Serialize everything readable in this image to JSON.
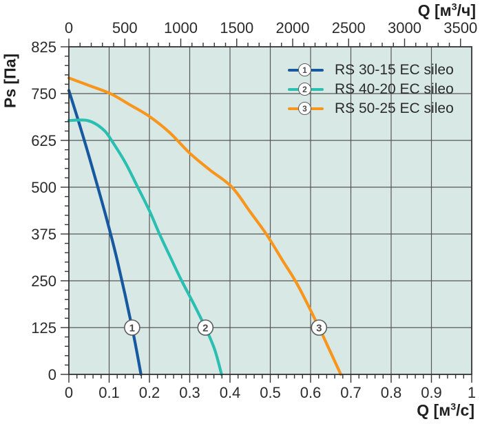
{
  "chart_data": {
    "type": "line",
    "title": "",
    "x_axis_bottom": {
      "unit_prefix": "Q [м",
      "unit_sup": "3",
      "unit_suffix": "/с]",
      "min": 0,
      "max": 1,
      "major_ticks": [
        0,
        0.1,
        0.2,
        0.3,
        0.4,
        0.5,
        0.6,
        0.7,
        0.8,
        0.9,
        1
      ],
      "tick_labels": [
        "0",
        "0.1",
        "0.2",
        "0.3",
        "0.4",
        "0.5",
        "0.6",
        "0.7",
        "0.8",
        "0.9",
        "1"
      ],
      "minor_step": 0.02
    },
    "x_axis_top": {
      "unit_prefix": "Q [м",
      "unit_sup": "3",
      "unit_suffix": "/ч]",
      "min": 0,
      "max": 3600,
      "major_ticks": [
        0,
        500,
        1000,
        1500,
        2000,
        2500,
        3000,
        3500
      ],
      "tick_labels": [
        "0",
        "500",
        "1000",
        "1500",
        "2000",
        "2500",
        "3000",
        "3500"
      ],
      "minor_step": 100
    },
    "y_axis": {
      "label": "Ps [Па]",
      "tick_values": [
        825,
        750,
        625,
        500,
        375,
        250,
        125,
        0
      ],
      "tick_labels": [
        "825",
        "750",
        "625",
        "500",
        "375",
        "250",
        "125",
        "0"
      ],
      "minor_ticks_per_interval": 4,
      "evenly_spaced_ticks": true
    },
    "grid": true,
    "legend_position": "top-right-inside",
    "series": [
      {
        "number": "1",
        "name": "RS 30-15 EC sileo",
        "color": "#1659a0",
        "points": [
          [
            0,
            755
          ],
          [
            0.03,
            655
          ],
          [
            0.06,
            545
          ],
          [
            0.09,
            430
          ],
          [
            0.12,
            305
          ],
          [
            0.157,
            125
          ],
          [
            0.179,
            0
          ]
        ],
        "marker": {
          "q": 0.157,
          "ps": 125
        }
      },
      {
        "number": "2",
        "name": "RS 40-20 EC sileo",
        "color": "#2abfb1",
        "points": [
          [
            0,
            678
          ],
          [
            0.04,
            679
          ],
          [
            0.065,
            670
          ],
          [
            0.09,
            649
          ],
          [
            0.106,
            625
          ],
          [
            0.14,
            566
          ],
          [
            0.171,
            500
          ],
          [
            0.2,
            437
          ],
          [
            0.225,
            375
          ],
          [
            0.255,
            306
          ],
          [
            0.28,
            250
          ],
          [
            0.31,
            188
          ],
          [
            0.339,
            125
          ],
          [
            0.362,
            66
          ],
          [
            0.379,
            0
          ]
        ],
        "marker": {
          "q": 0.339,
          "ps": 125
        }
      },
      {
        "number": "3",
        "name": "RS 50-25 EC sileo",
        "color": "#f8951d",
        "points": [
          [
            0,
            775
          ],
          [
            0.05,
            763
          ],
          [
            0.103,
            750
          ],
          [
            0.15,
            721
          ],
          [
            0.2,
            689
          ],
          [
            0.25,
            646
          ],
          [
            0.3,
            591
          ],
          [
            0.35,
            546
          ],
          [
            0.405,
            500
          ],
          [
            0.45,
            434
          ],
          [
            0.49,
            375
          ],
          [
            0.53,
            305
          ],
          [
            0.57,
            235
          ],
          [
            0.621,
            125
          ],
          [
            0.648,
            63
          ],
          [
            0.675,
            0
          ]
        ],
        "marker": {
          "q": 0.621,
          "ps": 125
        }
      }
    ],
    "colors": {
      "plot_bg": "#d8e9e5",
      "grid": "#555555",
      "frame": "#333333",
      "tick_text": "#2b2b2b",
      "marker_fill": "#ffffff",
      "marker_stroke": "#5a5a5a",
      "marker_text": "#4a4a4a"
    }
  }
}
